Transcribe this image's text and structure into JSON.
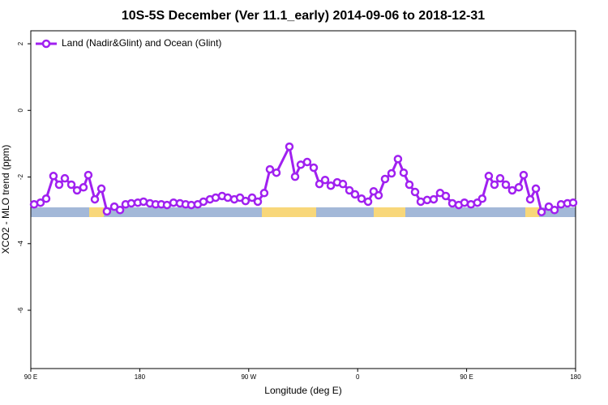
{
  "chart_data": {
    "type": "line",
    "title": "10S-5S December (Ver 11.1_early)   2014-09-06 to 2018-12-31",
    "xlabel": "Longitude (deg E)",
    "ylabel": "XCO2 - MLO trend (ppm)",
    "xlim": [
      90,
      540
    ],
    "ylim": [
      -7.75,
      2.39
    ],
    "xticks": [
      {
        "value": 90,
        "label": "90 E"
      },
      180,
      {
        "value": 270,
        "label": "90 W"
      },
      {
        "value": 360,
        "label": "0"
      },
      {
        "value": 450,
        "label": "90 E"
      },
      {
        "value": 540,
        "label": "180"
      }
    ],
    "yticks": [
      2,
      0,
      -2,
      -4,
      -6
    ],
    "legend": "top-left",
    "series": [
      {
        "name": "Land (Nadir&Glint) and Ocean (Glint)",
        "color": "#a020f0",
        "x": [
          92.7,
          98,
          102.7,
          108.7,
          113.4,
          118.1,
          123.5,
          128.2,
          133.5,
          137.5,
          142.9,
          148.3,
          152.9,
          159,
          163.7,
          168.3,
          173,
          178.4,
          183.1,
          188.4,
          193.1,
          197.8,
          202.5,
          207.9,
          213.2,
          217.9,
          222.6,
          227.9,
          232.6,
          238,
          242.7,
          248,
          252.7,
          258.1,
          262.8,
          267.4,
          272.8,
          277.5,
          282.8,
          287.5,
          292.9,
          303.6,
          308.3,
          313,
          318.3,
          323.7,
          328.4,
          333.1,
          337.8,
          343.1,
          347.8,
          353.2,
          357.8,
          363.2,
          368.6,
          373.2,
          377.3,
          382.6,
          388,
          393.3,
          398,
          402.7,
          407.4,
          412.1,
          417.4,
          422.8,
          428.1,
          432.8,
          438.2,
          443.5,
          448.2,
          453.6,
          458.9,
          462.9,
          468.3,
          473,
          477.7,
          482.4,
          487.7,
          493.1,
          497.1,
          502.5,
          507.2,
          511.9,
          517.9,
          522.6,
          528,
          533.3,
          538
        ],
        "values": [
          -2.82,
          -2.77,
          -2.65,
          -1.97,
          -2.23,
          -2.04,
          -2.23,
          -2.4,
          -2.31,
          -1.94,
          -2.67,
          -2.35,
          -3.03,
          -2.89,
          -2.99,
          -2.82,
          -2.79,
          -2.77,
          -2.74,
          -2.79,
          -2.82,
          -2.82,
          -2.84,
          -2.77,
          -2.79,
          -2.82,
          -2.84,
          -2.82,
          -2.74,
          -2.67,
          -2.62,
          -2.57,
          -2.62,
          -2.67,
          -2.62,
          -2.72,
          -2.62,
          -2.74,
          -2.48,
          -1.77,
          -1.87,
          -1.09,
          -1.99,
          -1.63,
          -1.55,
          -1.72,
          -2.21,
          -2.09,
          -2.26,
          -2.16,
          -2.21,
          -2.4,
          -2.52,
          -2.65,
          -2.74,
          -2.43,
          -2.55,
          -2.06,
          -1.89,
          -1.46,
          -1.87,
          -2.23,
          -2.45,
          -2.74,
          -2.69,
          -2.67,
          -2.48,
          -2.57,
          -2.79,
          -2.84,
          -2.77,
          -2.82,
          -2.77,
          -2.65,
          -1.97,
          -2.23,
          -2.04,
          -2.23,
          -2.4,
          -2.31,
          -1.94,
          -2.67,
          -2.35,
          -3.05,
          -2.89,
          -2.99,
          -2.82,
          -2.79,
          -2.77
        ]
      }
    ]
  }
}
